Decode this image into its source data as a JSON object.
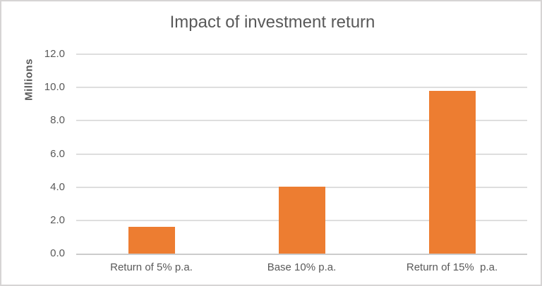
{
  "window": {
    "background_color": "#ffffff",
    "border_color": "#d6d4d4"
  },
  "chart_data": {
    "type": "bar",
    "title": "Impact of investment return",
    "xlabel": "",
    "ylabel": "Millions",
    "categories": [
      "Return of 5% p.a.",
      "Base 10% p.a.",
      "Return of 15%  p.a."
    ],
    "values": [
      1.6,
      4.05,
      9.8
    ],
    "yticks": [
      0,
      2,
      4,
      6,
      8,
      10,
      12
    ],
    "ytick_labels": [
      "0.0",
      "2.0",
      "4.0",
      "6.0",
      "8.0",
      "10.0",
      "12.0"
    ],
    "ylim": [
      0,
      12
    ],
    "grid": true,
    "legend": false,
    "bar_color": "#ED7D31",
    "gridline_color": "#DEDEDE",
    "axis_line_color": "#CCCCCC",
    "text_color": "#595959"
  }
}
